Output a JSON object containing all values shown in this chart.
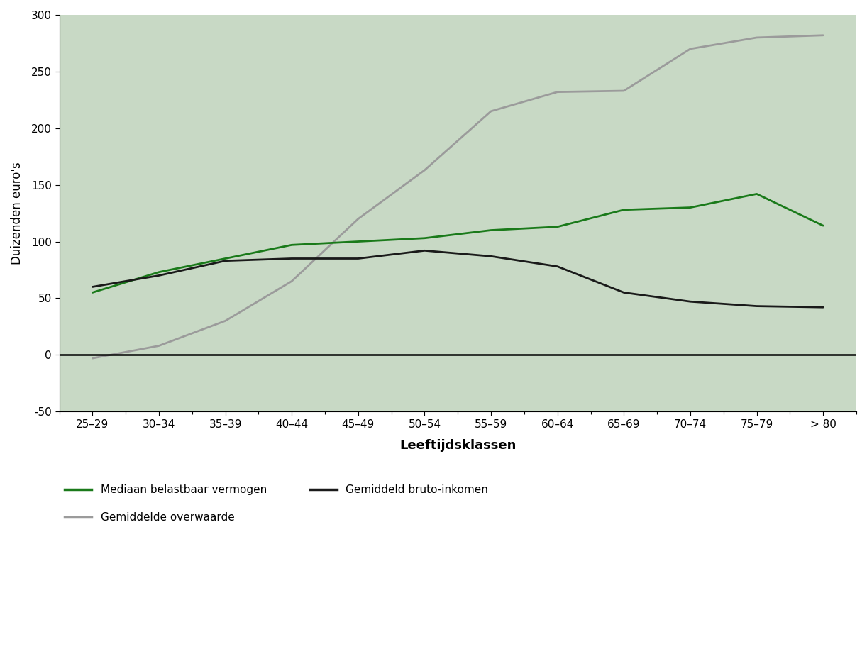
{
  "categories": [
    "25–29",
    "30–34",
    "35–39",
    "40–44",
    "45–49",
    "50–54",
    "55–59",
    "60–64",
    "65–69",
    "70–74",
    "75–79",
    "> 80"
  ],
  "mediaan_belastbaar": [
    55,
    73,
    85,
    97,
    100,
    103,
    110,
    113,
    128,
    130,
    142,
    114
  ],
  "gemiddelde_overwaarde": [
    -3,
    8,
    30,
    65,
    120,
    163,
    215,
    232,
    233,
    270,
    280,
    282
  ],
  "gemiddeld_bruto": [
    60,
    70,
    83,
    85,
    85,
    92,
    87,
    78,
    55,
    47,
    43,
    42
  ],
  "ylim": [
    -50,
    300
  ],
  "yticks": [
    -50,
    0,
    50,
    100,
    150,
    200,
    250,
    300
  ],
  "ylabel": "Duizenden euro's",
  "xlabel": "Leeftijdsklassen",
  "plot_bg": "#c8d9c5",
  "fig_bg": "#ffffff",
  "line_green": "#1a7a1a",
  "line_gray": "#9b9b9b",
  "line_black": "#1a1a1a",
  "legend_green": "Mediaan belastbaar vermogen",
  "legend_gray": "Gemiddelde overwaarde",
  "legend_black": "Gemiddeld bruto-inkomen",
  "linewidth": 2.0,
  "tick_fontsize": 11,
  "label_fontsize": 12,
  "xlabel_fontsize": 13
}
